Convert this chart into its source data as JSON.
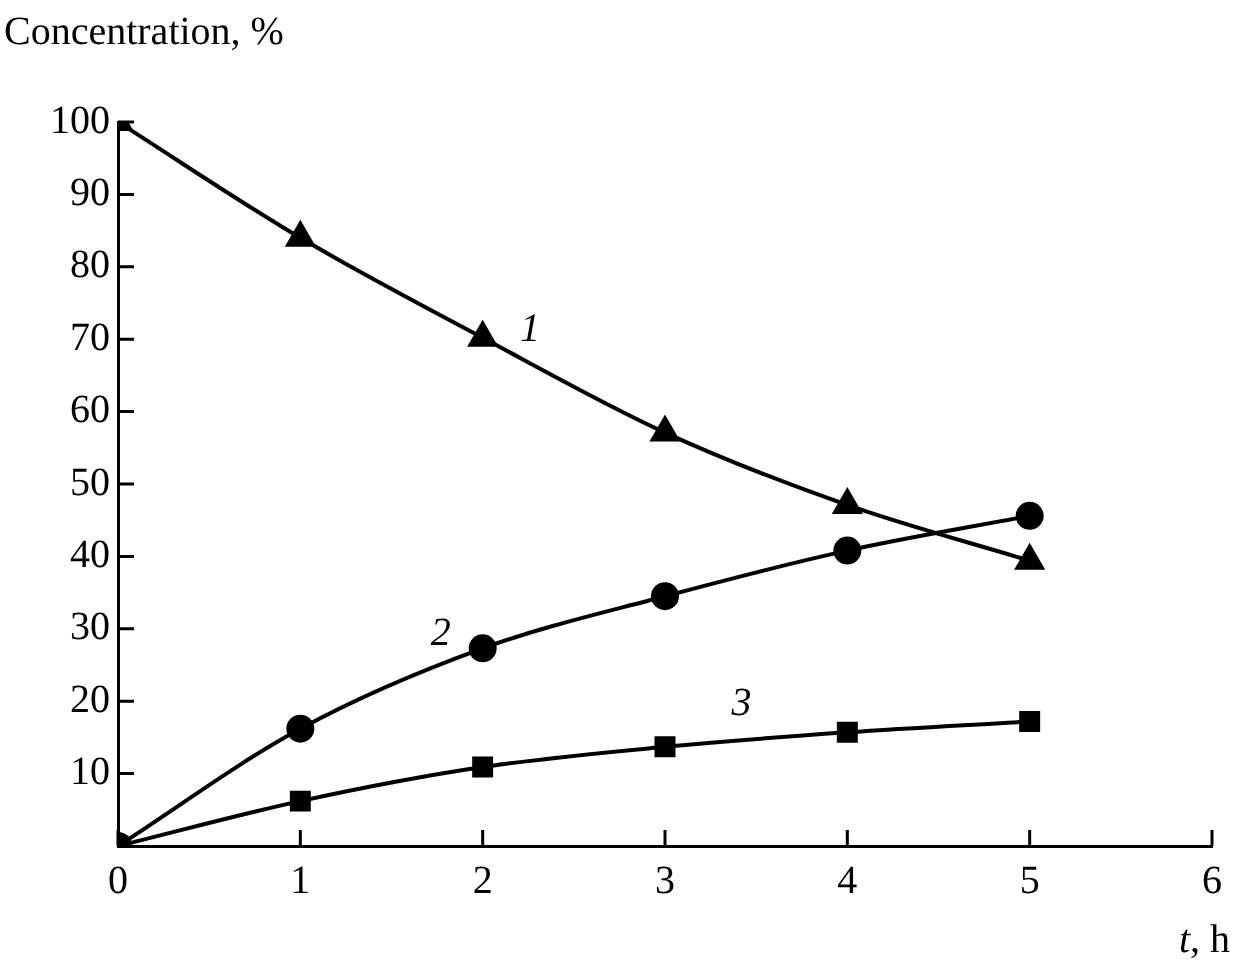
{
  "chart_data": {
    "type": "line",
    "ylabel": "Concentration, %",
    "xlabel": "t, h",
    "x": [
      0,
      1,
      2,
      3,
      4,
      5
    ],
    "series": [
      {
        "name": "1",
        "color": "#000000",
        "marker": "triangle",
        "values": [
          100,
          84,
          70.2,
          57.1,
          47.1,
          39.4
        ]
      },
      {
        "name": "2",
        "color": "#000000",
        "marker": "circle",
        "values": [
          0,
          16.2,
          27.3,
          34.5,
          40.8,
          45.6
        ]
      },
      {
        "name": "3",
        "color": "#000000",
        "marker": "square",
        "values": [
          0,
          6.2,
          10.9,
          13.7,
          15.7,
          17.2
        ]
      }
    ],
    "xlim": [
      0,
      6
    ],
    "xticks": [
      0,
      1,
      2,
      3,
      4,
      5,
      6
    ],
    "ylim": [
      0,
      100
    ],
    "yticks": [
      10,
      20,
      30,
      40,
      50,
      60,
      70,
      80,
      90,
      100
    ],
    "grid": false,
    "legend": false
  }
}
